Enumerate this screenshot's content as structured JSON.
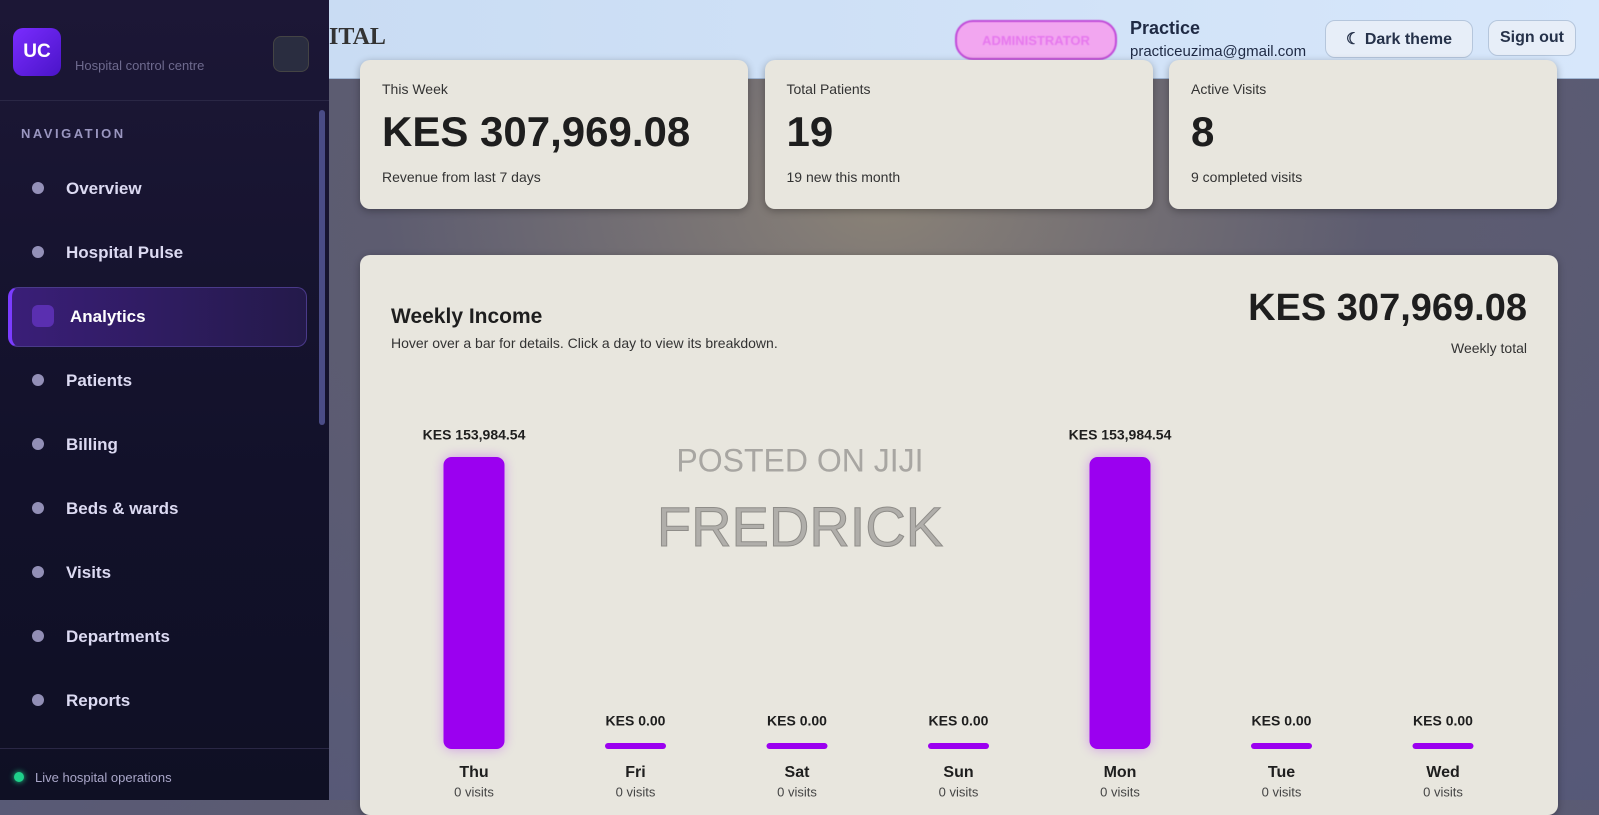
{
  "sidebar": {
    "subtitle": "Hospital control centre",
    "logo": "UC",
    "section": "NAVIGATION",
    "nav": [
      "Overview",
      "Hospital Pulse",
      "Analytics",
      "Patients",
      "Billing",
      "Beds & wards",
      "Visits",
      "Departments",
      "Reports"
    ],
    "active": 2,
    "footer": "Live hospital operations"
  },
  "header": {
    "title": "ITAL",
    "role": "ADMINISTRATOR",
    "user": "Practice",
    "email": "practiceuzima@gmail.com",
    "theme_button": "☾ Dark theme",
    "sign_out": "Sign out"
  },
  "stats": [
    {
      "label": "This Week",
      "value": "KES 307,969.08",
      "note": "Revenue from last 7 days"
    },
    {
      "label": "Total Patients",
      "value": "19",
      "note": "19 new this month"
    },
    {
      "label": "Active Visits",
      "value": "8",
      "note": "9 completed visits"
    }
  ],
  "weekly_income": {
    "type": "bar",
    "title": "Weekly Income",
    "subtitle": "Hover over a bar for details. Click a day to view its breakdown.",
    "total": "KES 307,969.08",
    "total_label": "Weekly total",
    "categories": [
      "Thu",
      "Fri",
      "Sat",
      "Sun",
      "Mon",
      "Tue",
      "Wed"
    ],
    "values": [
      153984.54,
      0,
      0,
      0,
      153984.54,
      0,
      0
    ],
    "value_labels": [
      "KES 153,984.54",
      "KES 0.00",
      "KES 0.00",
      "KES 0.00",
      "KES 153,984.54",
      "KES 0.00",
      "KES 0.00"
    ],
    "sublabels": [
      "0 visits",
      "0 visits",
      "0 visits",
      "0 visits",
      "0 visits",
      "0 visits",
      "0 visits"
    ],
    "color": "#9b00f0"
  },
  "watermark": {
    "line1": "POSTED ON JIJI",
    "line2": "FREDRICK"
  }
}
